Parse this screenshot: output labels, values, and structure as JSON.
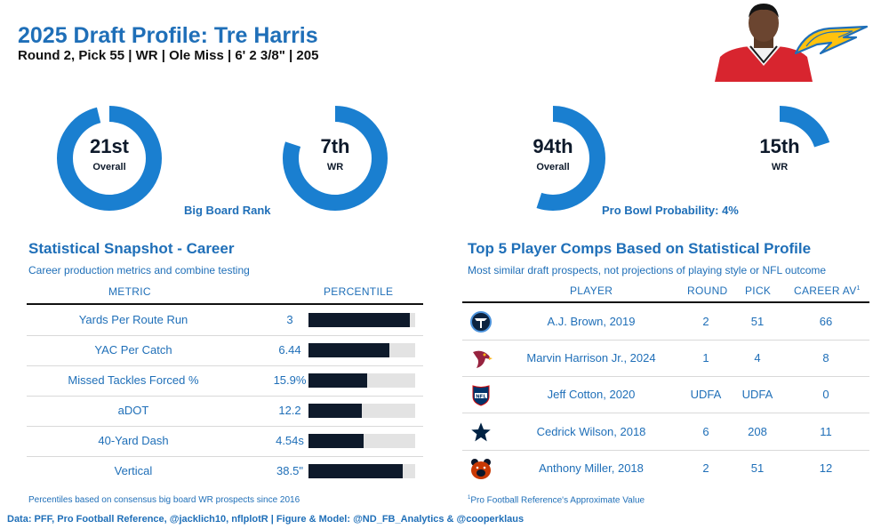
{
  "header": {
    "title": "2025 Draft Profile: Tre Harris",
    "subtitle": "Round 2, Pick 55 | WR | Ole Miss | 6' 2 3/8\" | 205"
  },
  "colors": {
    "accent": "#1f6fb8",
    "donut_fill": "#1a7fd0",
    "donut_track": "#ffffff",
    "bar_fill": "#0e1a2b",
    "bar_track": "#e3e3e3"
  },
  "icons": {
    "headshot": "player-headshot",
    "team": "chargers-bolt-logo"
  },
  "big_board": {
    "caption": "Big Board Rank",
    "overall": {
      "rank": "21st",
      "label": "Overall"
    },
    "position": {
      "rank": "7th",
      "label": "WR"
    }
  },
  "pro_bowl": {
    "caption": "Pro Bowl Probability: 4%",
    "overall": {
      "rank": "94th",
      "label": "Overall"
    },
    "position": {
      "rank": "15th",
      "label": "WR"
    }
  },
  "snapshot": {
    "title": "Statistical Snapshot - Career",
    "subtitle": "Career production metrics and combine testing",
    "col_metric": "METRIC",
    "col_percentile": "PERCENTILE",
    "footnote": "Percentiles based on consensus big board WR prospects since 2016"
  },
  "comps": {
    "title": "Top 5 Player Comps Based on Statistical Profile",
    "subtitle": "Most similar draft prospects, not projections of playing style or NFL outcome",
    "col_player": "PLAYER",
    "col_round": "ROUND",
    "col_pick": "PICK",
    "col_av": "CAREER AV",
    "col_av_sup": "1",
    "footnote_sup": "1",
    "footnote": "Pro Football Reference's Approximate Value",
    "rows": [
      {
        "team_icon": "titans-logo-icon",
        "player": "A.J. Brown, 2019",
        "round": "2",
        "pick": "51",
        "av": "66"
      },
      {
        "team_icon": "cardinals-logo-icon",
        "player": "Marvin Harrison Jr., 2024",
        "round": "1",
        "pick": "4",
        "av": "8"
      },
      {
        "team_icon": "nfl-shield-icon",
        "player": "Jeff Cotton, 2020",
        "round": "UDFA",
        "pick": "UDFA",
        "av": "0"
      },
      {
        "team_icon": "cowboys-star-icon",
        "player": "Cedrick Wilson, 2018",
        "round": "6",
        "pick": "208",
        "av": "11"
      },
      {
        "team_icon": "bears-logo-icon",
        "player": "Anthony Miller, 2018",
        "round": "2",
        "pick": "51",
        "av": "12"
      }
    ]
  },
  "source": "Data: PFF, Pro Football Reference, @jacklich10, nflplotR | Figure & Model: @ND_FB_Analytics & @cooperklaus",
  "chart_data": [
    {
      "type": "pie",
      "title": "Big Board Rank",
      "series": [
        {
          "name": "Overall",
          "rank_label": "21st",
          "fill_fraction": 0.96
        },
        {
          "name": "WR",
          "rank_label": "7th",
          "fill_fraction": 0.8
        }
      ]
    },
    {
      "type": "pie",
      "title": "Pro Bowl Probability: 4%",
      "series": [
        {
          "name": "Overall",
          "rank_label": "94th",
          "fill_fraction": 0.55
        },
        {
          "name": "WR",
          "rank_label": "15th",
          "fill_fraction": 0.2
        }
      ]
    },
    {
      "type": "bar",
      "title": "Statistical Snapshot - Career",
      "categories": [
        "Yards Per Route Run",
        "YAC Per Catch",
        "Missed Tackles Forced %",
        "aDOT",
        "40-Yard Dash",
        "Vertical"
      ],
      "display_values": [
        "3",
        "6.44",
        "15.9%",
        "12.2",
        "4.54s",
        "38.5\""
      ],
      "values": [
        95,
        76,
        55,
        50,
        52,
        88
      ],
      "xlabel": "PERCENTILE",
      "xlim": [
        0,
        100
      ],
      "grid": false
    }
  ]
}
